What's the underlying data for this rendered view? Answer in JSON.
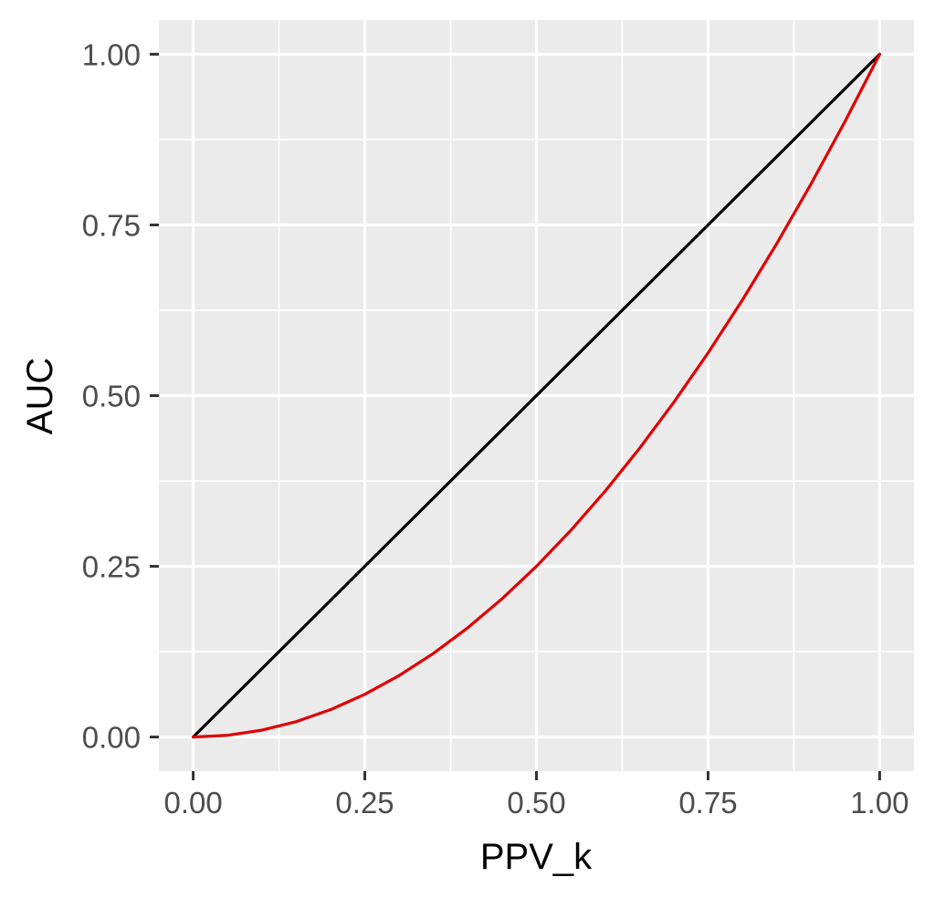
{
  "chart_data": {
    "type": "line",
    "title": "",
    "xlabel": "PPV_k",
    "ylabel": "AUC",
    "xlim": [
      -0.05,
      1.05
    ],
    "ylim": [
      -0.05,
      1.05
    ],
    "x_ticks": [
      0,
      0.25,
      0.5,
      0.75,
      1
    ],
    "y_ticks": [
      0,
      0.25,
      0.5,
      0.75,
      1
    ],
    "x_tick_labels": [
      "0.00",
      "0.25",
      "0.50",
      "0.75",
      "1.00"
    ],
    "y_tick_labels": [
      "0.00",
      "0.25",
      "0.50",
      "0.75",
      "1.00"
    ],
    "grid": true,
    "legend": "none",
    "colors": {
      "panel": "#EBEBEB",
      "grid": "#FFFFFF",
      "tick": "#333333",
      "tick_label": "#4D4D4D"
    },
    "series": [
      {
        "color": "#000000",
        "x": [
          0,
          0.25,
          0.5,
          0.75,
          1
        ],
        "y": [
          0,
          0.25,
          0.5,
          0.75,
          1
        ]
      },
      {
        "color": "#E00000",
        "x": [
          0,
          0.05,
          0.1,
          0.15,
          0.2,
          0.25,
          0.3,
          0.35,
          0.4,
          0.45,
          0.5,
          0.55,
          0.6,
          0.65,
          0.7,
          0.75,
          0.8,
          0.85,
          0.9,
          0.95,
          1
        ],
        "y": [
          0,
          0.0025,
          0.01,
          0.0225,
          0.04,
          0.0625,
          0.09,
          0.1225,
          0.16,
          0.2025,
          0.25,
          0.3025,
          0.36,
          0.4225,
          0.49,
          0.5625,
          0.64,
          0.7225,
          0.81,
          0.9025,
          1
        ]
      }
    ]
  }
}
